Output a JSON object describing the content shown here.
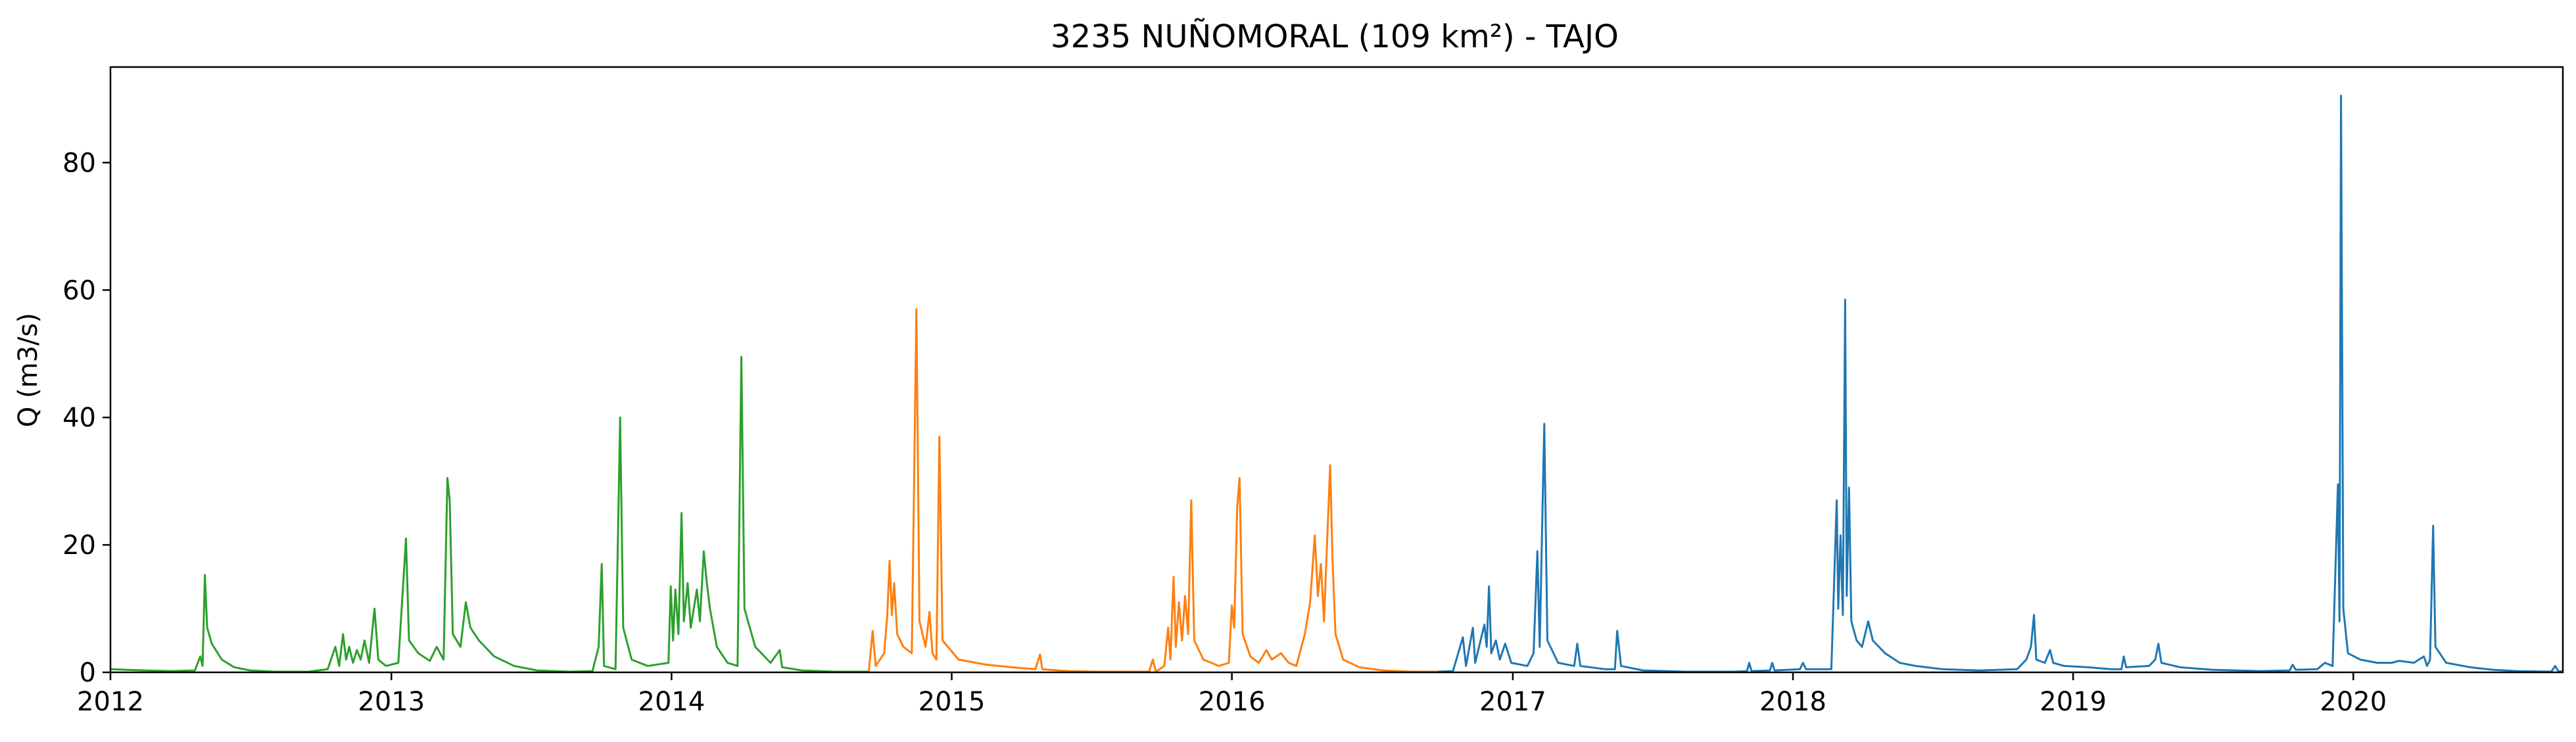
{
  "chart_data": {
    "type": "line",
    "title": "3235 NUÑOMORAL (109 km²) - TAJO",
    "xlabel": "",
    "ylabel": "Q (m3/s)",
    "xlim": [
      "2012-01-01",
      "2020-09-30"
    ],
    "ylim": [
      0,
      95
    ],
    "x_ticks": [
      "2012",
      "2013",
      "2014",
      "2015",
      "2016",
      "2017",
      "2018",
      "2019",
      "2020"
    ],
    "y_ticks": [
      0,
      20,
      40,
      60,
      80
    ],
    "grid": false,
    "legend": "none",
    "series": [
      {
        "color": "#2ca02c",
        "points": [
          [
            "2012-01-01",
            0.5
          ],
          [
            "2012-02-15",
            0.3
          ],
          [
            "2012-03-20",
            0.2
          ],
          [
            "2012-04-20",
            0.3
          ],
          [
            "2012-04-27",
            2.5
          ],
          [
            "2012-04-30",
            1.0
          ],
          [
            "2012-05-03",
            15.3
          ],
          [
            "2012-05-06",
            7.0
          ],
          [
            "2012-05-12",
            4.5
          ],
          [
            "2012-05-25",
            2.0
          ],
          [
            "2012-06-10",
            0.8
          ],
          [
            "2012-07-01",
            0.3
          ],
          [
            "2012-08-01",
            0.1
          ],
          [
            "2012-09-15",
            0.1
          ],
          [
            "2012-10-10",
            0.5
          ],
          [
            "2012-10-20",
            4.0
          ],
          [
            "2012-10-25",
            1.0
          ],
          [
            "2012-10-30",
            6.0
          ],
          [
            "2012-11-03",
            2.0
          ],
          [
            "2012-11-07",
            4.0
          ],
          [
            "2012-11-12",
            1.5
          ],
          [
            "2012-11-17",
            3.5
          ],
          [
            "2012-11-22",
            2.0
          ],
          [
            "2012-11-27",
            5.0
          ],
          [
            "2012-12-03",
            1.5
          ],
          [
            "2012-12-10",
            10.0
          ],
          [
            "2012-12-15",
            2.0
          ],
          [
            "2012-12-25",
            1.0
          ],
          [
            "2013-01-10",
            1.5
          ],
          [
            "2013-01-20",
            21.0
          ],
          [
            "2013-01-24",
            5.0
          ],
          [
            "2013-02-05",
            3.0
          ],
          [
            "2013-02-20",
            1.8
          ],
          [
            "2013-03-01",
            4.0
          ],
          [
            "2013-03-10",
            2.0
          ],
          [
            "2013-03-15",
            30.5
          ],
          [
            "2013-03-18",
            27.0
          ],
          [
            "2013-03-22",
            6.0
          ],
          [
            "2013-04-01",
            4.0
          ],
          [
            "2013-04-08",
            11.0
          ],
          [
            "2013-04-14",
            7.0
          ],
          [
            "2013-04-25",
            5.0
          ],
          [
            "2013-05-15",
            2.5
          ],
          [
            "2013-06-10",
            1.0
          ],
          [
            "2013-07-10",
            0.3
          ],
          [
            "2013-08-20",
            0.1
          ],
          [
            "2013-09-20",
            0.2
          ],
          [
            "2013-09-28",
            4.0
          ],
          [
            "2013-10-02",
            17.0
          ],
          [
            "2013-10-05",
            1.0
          ],
          [
            "2013-10-20",
            0.5
          ],
          [
            "2013-10-26",
            40.0
          ],
          [
            "2013-10-30",
            7.0
          ],
          [
            "2013-11-10",
            2.0
          ],
          [
            "2013-12-01",
            1.0
          ],
          [
            "2013-12-28",
            1.5
          ],
          [
            "2013-12-31",
            13.5
          ],
          [
            "2014-01-03",
            5.0
          ],
          [
            "2014-01-06",
            13.0
          ],
          [
            "2014-01-10",
            6.0
          ],
          [
            "2014-01-14",
            25.0
          ],
          [
            "2014-01-17",
            8.0
          ],
          [
            "2014-01-22",
            14.0
          ],
          [
            "2014-01-26",
            7.0
          ],
          [
            "2014-02-03",
            13.0
          ],
          [
            "2014-02-07",
            8.0
          ],
          [
            "2014-02-12",
            19.0
          ],
          [
            "2014-02-16",
            14.0
          ],
          [
            "2014-02-20",
            10.0
          ],
          [
            "2014-03-01",
            4.0
          ],
          [
            "2014-03-15",
            1.5
          ],
          [
            "2014-03-28",
            1.0
          ],
          [
            "2014-04-02",
            49.5
          ],
          [
            "2014-04-06",
            10.0
          ],
          [
            "2014-04-20",
            4.0
          ],
          [
            "2014-05-10",
            1.5
          ],
          [
            "2014-05-22",
            3.5
          ],
          [
            "2014-05-25",
            0.8
          ],
          [
            "2014-06-20",
            0.3
          ],
          [
            "2014-08-01",
            0.1
          ],
          [
            "2014-09-15",
            0.1
          ]
        ]
      },
      {
        "color": "#ff7f0e",
        "points": [
          [
            "2014-09-15",
            0.1
          ],
          [
            "2014-09-20",
            6.5
          ],
          [
            "2014-09-24",
            1.0
          ],
          [
            "2014-10-05",
            3.0
          ],
          [
            "2014-10-09",
            9.0
          ],
          [
            "2014-10-12",
            17.5
          ],
          [
            "2014-10-15",
            9.0
          ],
          [
            "2014-10-18",
            14.0
          ],
          [
            "2014-10-22",
            6.0
          ],
          [
            "2014-10-30",
            4.0
          ],
          [
            "2014-11-10",
            3.0
          ],
          [
            "2014-11-16",
            57.0
          ],
          [
            "2014-11-20",
            8.0
          ],
          [
            "2014-11-28",
            4.0
          ],
          [
            "2014-12-03",
            9.5
          ],
          [
            "2014-12-07",
            3.0
          ],
          [
            "2014-12-12",
            2.0
          ],
          [
            "2014-12-16",
            37.0
          ],
          [
            "2014-12-20",
            5.0
          ],
          [
            "2015-01-10",
            2.0
          ],
          [
            "2015-02-15",
            1.2
          ],
          [
            "2015-03-20",
            0.8
          ],
          [
            "2015-04-20",
            0.5
          ],
          [
            "2015-04-26",
            2.8
          ],
          [
            "2015-04-29",
            0.5
          ],
          [
            "2015-06-01",
            0.2
          ],
          [
            "2015-07-10",
            0.1
          ],
          [
            "2015-08-20",
            0.1
          ],
          [
            "2015-09-15",
            0.1
          ],
          [
            "2015-09-20",
            2.0
          ],
          [
            "2015-09-24",
            0.1
          ],
          [
            "2015-10-05",
            1.0
          ],
          [
            "2015-10-10",
            7.0
          ],
          [
            "2015-10-13",
            2.0
          ],
          [
            "2015-10-17",
            15.0
          ],
          [
            "2015-10-20",
            4.0
          ],
          [
            "2015-10-24",
            11.0
          ],
          [
            "2015-10-28",
            5.0
          ],
          [
            "2015-11-01",
            12.0
          ],
          [
            "2015-11-05",
            6.0
          ],
          [
            "2015-11-09",
            27.0
          ],
          [
            "2015-11-13",
            5.0
          ],
          [
            "2015-11-25",
            2.0
          ],
          [
            "2015-12-15",
            1.0
          ],
          [
            "2015-12-28",
            1.5
          ],
          [
            "2016-01-01",
            10.5
          ],
          [
            "2016-01-04",
            7.0
          ],
          [
            "2016-01-08",
            26.0
          ],
          [
            "2016-01-11",
            30.5
          ],
          [
            "2016-01-15",
            6.0
          ],
          [
            "2016-01-25",
            2.5
          ],
          [
            "2016-02-05",
            1.5
          ],
          [
            "2016-02-15",
            3.5
          ],
          [
            "2016-02-22",
            2.0
          ],
          [
            "2016-03-05",
            3.0
          ],
          [
            "2016-03-15",
            1.5
          ],
          [
            "2016-03-25",
            1.0
          ],
          [
            "2016-04-05",
            6.0
          ],
          [
            "2016-04-12",
            11.0
          ],
          [
            "2016-04-18",
            21.5
          ],
          [
            "2016-04-22",
            12.0
          ],
          [
            "2016-04-26",
            17.0
          ],
          [
            "2016-04-30",
            8.0
          ],
          [
            "2016-05-08",
            32.5
          ],
          [
            "2016-05-11",
            18.0
          ],
          [
            "2016-05-15",
            6.0
          ],
          [
            "2016-05-25",
            2.0
          ],
          [
            "2016-06-15",
            0.8
          ],
          [
            "2016-07-15",
            0.3
          ],
          [
            "2016-08-20",
            0.1
          ],
          [
            "2016-09-25",
            0.1
          ]
        ]
      },
      {
        "color": "#1f77b4",
        "points": [
          [
            "2016-09-25",
            0.1
          ],
          [
            "2016-10-15",
            0.2
          ],
          [
            "2016-10-28",
            5.5
          ],
          [
            "2016-11-01",
            1.0
          ],
          [
            "2016-11-10",
            7.0
          ],
          [
            "2016-11-13",
            1.5
          ],
          [
            "2016-11-25",
            7.5
          ],
          [
            "2016-11-28",
            4.0
          ],
          [
            "2016-12-01",
            13.5
          ],
          [
            "2016-12-04",
            3.0
          ],
          [
            "2016-12-10",
            5.0
          ],
          [
            "2016-12-15",
            2.0
          ],
          [
            "2016-12-22",
            4.5
          ],
          [
            "2016-12-30",
            1.5
          ],
          [
            "2017-01-20",
            1.0
          ],
          [
            "2017-01-28",
            3.0
          ],
          [
            "2017-02-02",
            19.0
          ],
          [
            "2017-02-05",
            4.0
          ],
          [
            "2017-02-11",
            39.0
          ],
          [
            "2017-02-15",
            5.0
          ],
          [
            "2017-03-01",
            1.5
          ],
          [
            "2017-03-22",
            1.0
          ],
          [
            "2017-03-26",
            4.5
          ],
          [
            "2017-03-30",
            1.0
          ],
          [
            "2017-05-01",
            0.5
          ],
          [
            "2017-05-14",
            0.5
          ],
          [
            "2017-05-17",
            6.5
          ],
          [
            "2017-05-22",
            1.0
          ],
          [
            "2017-06-20",
            0.3
          ],
          [
            "2017-08-15",
            0.1
          ],
          [
            "2017-10-15",
            0.1
          ],
          [
            "2017-11-02",
            0.2
          ],
          [
            "2017-11-05",
            1.5
          ],
          [
            "2017-11-08",
            0.2
          ],
          [
            "2017-12-02",
            0.3
          ],
          [
            "2017-12-05",
            1.5
          ],
          [
            "2017-12-08",
            0.3
          ],
          [
            "2018-01-10",
            0.5
          ],
          [
            "2018-01-14",
            1.5
          ],
          [
            "2018-01-18",
            0.5
          ],
          [
            "2018-02-20",
            0.5
          ],
          [
            "2018-02-27",
            27.0
          ],
          [
            "2018-03-01",
            10.0
          ],
          [
            "2018-03-04",
            21.5
          ],
          [
            "2018-03-07",
            9.0
          ],
          [
            "2018-03-10",
            58.5
          ],
          [
            "2018-03-12",
            12.0
          ],
          [
            "2018-03-15",
            29.0
          ],
          [
            "2018-03-18",
            8.0
          ],
          [
            "2018-03-25",
            5.0
          ],
          [
            "2018-04-01",
            4.0
          ],
          [
            "2018-04-09",
            8.0
          ],
          [
            "2018-04-15",
            5.0
          ],
          [
            "2018-05-01",
            3.0
          ],
          [
            "2018-05-20",
            1.5
          ],
          [
            "2018-06-10",
            1.0
          ],
          [
            "2018-07-15",
            0.5
          ],
          [
            "2018-09-01",
            0.3
          ],
          [
            "2018-10-20",
            0.5
          ],
          [
            "2018-11-01",
            2.0
          ],
          [
            "2018-11-07",
            4.0
          ],
          [
            "2018-11-11",
            9.0
          ],
          [
            "2018-11-14",
            2.0
          ],
          [
            "2018-11-25",
            1.5
          ],
          [
            "2018-12-02",
            3.5
          ],
          [
            "2018-12-06",
            1.5
          ],
          [
            "2018-12-20",
            1.0
          ],
          [
            "2019-01-20",
            0.8
          ],
          [
            "2019-02-20",
            0.5
          ],
          [
            "2019-03-05",
            0.5
          ],
          [
            "2019-03-08",
            2.5
          ],
          [
            "2019-03-11",
            0.8
          ],
          [
            "2019-04-10",
            1.0
          ],
          [
            "2019-04-18",
            2.0
          ],
          [
            "2019-04-22",
            4.5
          ],
          [
            "2019-04-26",
            1.5
          ],
          [
            "2019-05-20",
            0.8
          ],
          [
            "2019-07-01",
            0.4
          ],
          [
            "2019-09-01",
            0.2
          ],
          [
            "2019-10-10",
            0.3
          ],
          [
            "2019-10-14",
            1.2
          ],
          [
            "2019-10-18",
            0.4
          ],
          [
            "2019-11-15",
            0.5
          ],
          [
            "2019-11-25",
            1.5
          ],
          [
            "2019-12-05",
            1.0
          ],
          [
            "2019-12-12",
            29.5
          ],
          [
            "2019-12-14",
            8.0
          ],
          [
            "2019-12-16",
            90.5
          ],
          [
            "2019-12-19",
            10.0
          ],
          [
            "2019-12-25",
            3.0
          ],
          [
            "2020-01-10",
            2.0
          ],
          [
            "2020-02-01",
            1.5
          ],
          [
            "2020-02-20",
            1.5
          ],
          [
            "2020-03-01",
            1.8
          ],
          [
            "2020-03-20",
            1.5
          ],
          [
            "2020-04-02",
            2.5
          ],
          [
            "2020-04-06",
            1.0
          ],
          [
            "2020-04-10",
            2.0
          ],
          [
            "2020-04-14",
            23.0
          ],
          [
            "2020-04-17",
            4.0
          ],
          [
            "2020-05-01",
            1.5
          ],
          [
            "2020-06-01",
            0.8
          ],
          [
            "2020-07-01",
            0.4
          ],
          [
            "2020-08-01",
            0.2
          ],
          [
            "2020-09-15",
            0.1
          ],
          [
            "2020-09-20",
            1.0
          ],
          [
            "2020-09-24",
            0.2
          ],
          [
            "2020-09-30",
            0.1
          ]
        ]
      }
    ]
  }
}
